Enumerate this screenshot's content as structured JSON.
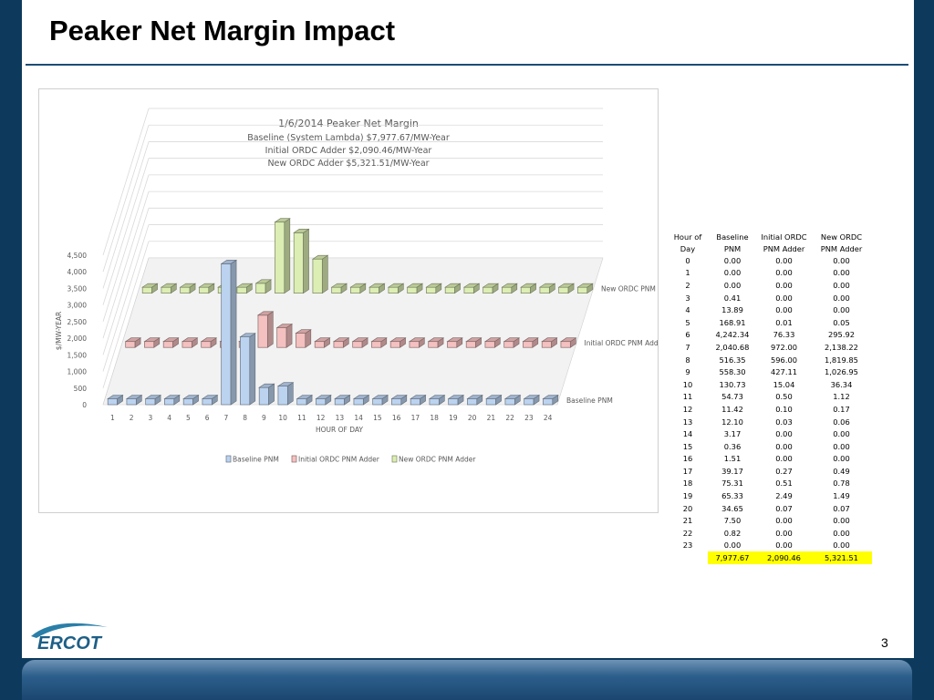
{
  "slide": {
    "title": "Peaker Net Margin Impact",
    "page_number": "3",
    "logo_text": "ERCOT",
    "colors": {
      "background": "#0d3a5c",
      "rule": "#1a4c76",
      "highlight": "#ffff00"
    }
  },
  "chart_data": {
    "type": "bar",
    "title_lines": [
      "1/6/2014 Peaker Net Margin",
      "Baseline (System Lambda) $7,977.67/MW-Year",
      "Initial ORDC Adder $2,090.46/MW-Year",
      "New ORDC Adder $5,321.51/MW-Year"
    ],
    "xlabel": "HOUR OF DAY",
    "ylabel": "$/MW-YEAR",
    "ylim": [
      0,
      4500
    ],
    "yticks": [
      "0",
      "500",
      "1,000",
      "1,500",
      "2,000",
      "2,500",
      "3,000",
      "3,500",
      "4,000",
      "4,500"
    ],
    "categories": [
      "1",
      "2",
      "3",
      "4",
      "5",
      "6",
      "7",
      "8",
      "9",
      "10",
      "11",
      "12",
      "13",
      "14",
      "15",
      "16",
      "17",
      "18",
      "19",
      "20",
      "21",
      "22",
      "23",
      "24"
    ],
    "series": [
      {
        "name": "Baseline PNM",
        "color": "#bcd3f0",
        "values": [
          0.0,
          0.0,
          0.0,
          0.41,
          13.89,
          168.91,
          4242.34,
          2040.68,
          516.35,
          558.3,
          130.73,
          54.73,
          11.42,
          12.1,
          3.17,
          0.36,
          1.51,
          39.17,
          75.31,
          65.33,
          34.65,
          7.5,
          0.82,
          0.0
        ]
      },
      {
        "name": "Initial ORDC PNM Adder",
        "color": "#f4c0c0",
        "values": [
          0.0,
          0.0,
          0.0,
          0.0,
          0.0,
          0.01,
          76.33,
          972.0,
          596.0,
          427.11,
          15.04,
          0.5,
          0.1,
          0.03,
          0.0,
          0.0,
          0.0,
          0.27,
          0.51,
          2.49,
          0.07,
          0.0,
          0.0,
          0.0
        ]
      },
      {
        "name": "New ORDC PNM Adder",
        "color": "#dceeb3",
        "values": [
          0.0,
          0.0,
          0.0,
          0.0,
          0.0,
          0.05,
          295.92,
          2138.22,
          1819.85,
          1026.95,
          36.34,
          1.12,
          0.17,
          0.06,
          0.0,
          0.0,
          0.0,
          0.49,
          0.78,
          1.49,
          0.07,
          0.0,
          0.0,
          0.0
        ]
      }
    ],
    "legend_position": "bottom",
    "grid": true
  },
  "table": {
    "headers": [
      [
        "Hour of",
        "Day"
      ],
      [
        "Baseline",
        "PNM"
      ],
      [
        "Initial ORDC",
        "PNM Adder"
      ],
      [
        "New ORDC",
        "PNM Adder"
      ]
    ],
    "rows": [
      [
        "0",
        "0.00",
        "0.00",
        "0.00"
      ],
      [
        "1",
        "0.00",
        "0.00",
        "0.00"
      ],
      [
        "2",
        "0.00",
        "0.00",
        "0.00"
      ],
      [
        "3",
        "0.41",
        "0.00",
        "0.00"
      ],
      [
        "4",
        "13.89",
        "0.00",
        "0.00"
      ],
      [
        "5",
        "168.91",
        "0.01",
        "0.05"
      ],
      [
        "6",
        "4,242.34",
        "76.33",
        "295.92"
      ],
      [
        "7",
        "2,040.68",
        "972.00",
        "2,138.22"
      ],
      [
        "8",
        "516.35",
        "596.00",
        "1,819.85"
      ],
      [
        "9",
        "558.30",
        "427.11",
        "1,026.95"
      ],
      [
        "10",
        "130.73",
        "15.04",
        "36.34"
      ],
      [
        "11",
        "54.73",
        "0.50",
        "1.12"
      ],
      [
        "12",
        "11.42",
        "0.10",
        "0.17"
      ],
      [
        "13",
        "12.10",
        "0.03",
        "0.06"
      ],
      [
        "14",
        "3.17",
        "0.00",
        "0.00"
      ],
      [
        "15",
        "0.36",
        "0.00",
        "0.00"
      ],
      [
        "16",
        "1.51",
        "0.00",
        "0.00"
      ],
      [
        "17",
        "39.17",
        "0.27",
        "0.49"
      ],
      [
        "18",
        "75.31",
        "0.51",
        "0.78"
      ],
      [
        "19",
        "65.33",
        "2.49",
        "1.49"
      ],
      [
        "20",
        "34.65",
        "0.07",
        "0.07"
      ],
      [
        "21",
        "7.50",
        "0.00",
        "0.00"
      ],
      [
        "22",
        "0.82",
        "0.00",
        "0.00"
      ],
      [
        "23",
        "0.00",
        "0.00",
        "0.00"
      ]
    ],
    "totals": [
      "",
      "7,977.67",
      "2,090.46",
      "5,321.51"
    ]
  }
}
